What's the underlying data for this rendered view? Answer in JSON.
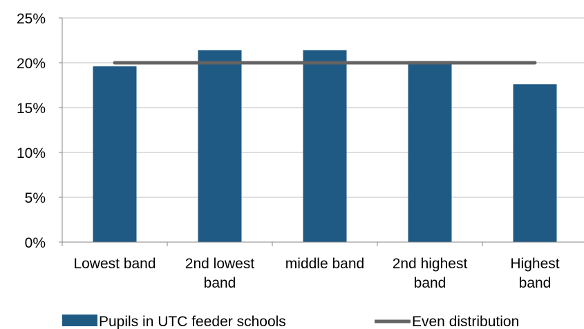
{
  "chart_data": {
    "type": "bar",
    "categories": [
      [
        "Lowest band"
      ],
      [
        "2nd lowest",
        "band"
      ],
      [
        "middle band"
      ],
      [
        "2nd highest",
        "band"
      ],
      [
        "Highest",
        "band"
      ]
    ],
    "series": [
      {
        "name": "Pupils in UTC feeder schools",
        "type": "bar",
        "color": "#1F5A85",
        "values": [
          19.6,
          21.4,
          21.4,
          20.2,
          17.6
        ]
      },
      {
        "name": "Even distribution",
        "type": "line",
        "color": "#646464",
        "values": [
          20,
          20,
          20,
          20,
          20
        ]
      }
    ],
    "ylim": [
      0,
      25
    ],
    "yticks": [
      0,
      5,
      10,
      15,
      20,
      25
    ],
    "ytick_format": "percent",
    "grid": true,
    "legend_position": "bottom",
    "title": "",
    "xlabel": "",
    "ylabel": ""
  }
}
